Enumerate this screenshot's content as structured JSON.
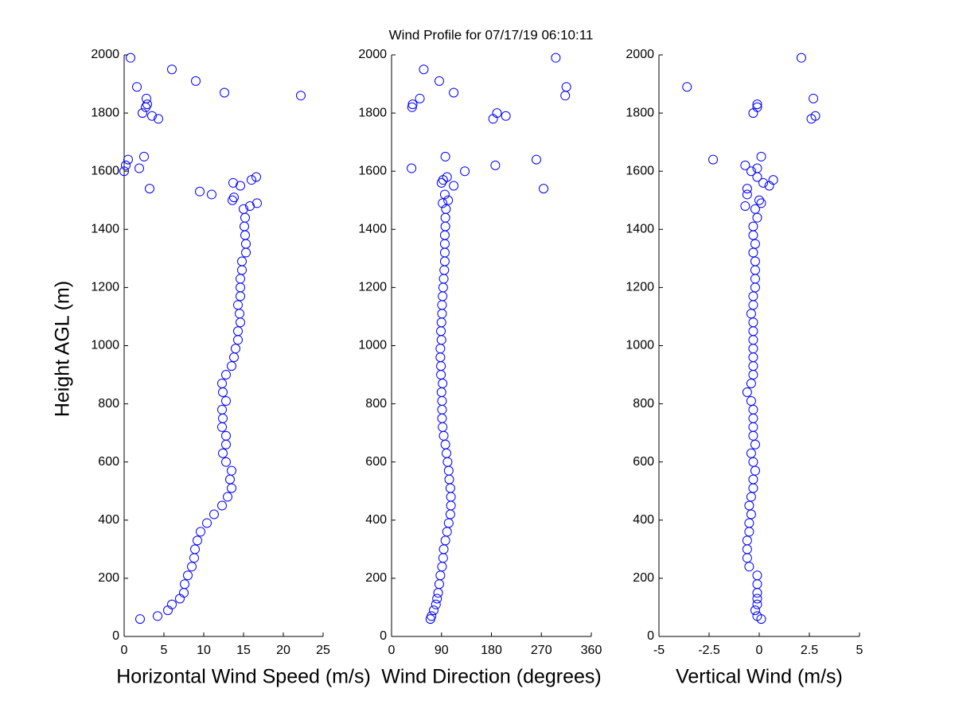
{
  "title": "Wind Profile for  07/17/19 06:10:11",
  "chart_data": [
    {
      "type": "scatter",
      "xlabel": "Horizontal Wind Speed (m/s)",
      "ylabel": "Height AGL (m)",
      "color": "#0000ff",
      "xlim": [
        0,
        25
      ],
      "xticks": [
        0,
        5,
        10,
        15,
        20,
        25
      ],
      "ylim": [
        0,
        2000
      ],
      "yticks": [
        0,
        200,
        400,
        600,
        800,
        1000,
        1200,
        1400,
        1600,
        1800,
        2000
      ],
      "x": [
        2,
        4.2,
        5.5,
        6,
        7,
        7.5,
        7.6,
        8,
        8.5,
        8.8,
        8.9,
        9.2,
        9.6,
        10.4,
        11.3,
        12.3,
        13,
        13.5,
        13.3,
        13.5,
        12.8,
        12.4,
        12.8,
        12.8,
        12.3,
        12.4,
        12.3,
        12.8,
        12.4,
        12.3,
        12.8,
        13.5,
        13.8,
        14,
        14.3,
        14.3,
        14.6,
        14.5,
        14.3,
        14.6,
        14.6,
        14.6,
        14.8,
        14.8,
        15.3,
        15.3,
        15.2,
        15.1,
        15.2,
        15,
        15.8,
        16.7,
        13.6,
        13.8,
        11,
        9.5,
        3.2,
        14.6,
        13.7,
        16,
        16.6,
        0,
        1.9,
        0.2,
        0.5,
        2.5,
        4.3,
        2.3,
        3.5,
        2.7,
        2.9,
        2.8,
        22.2,
        12.6,
        1.6,
        9,
        6,
        0.8
      ],
      "values": [
        60,
        70,
        90,
        110,
        130,
        150,
        180,
        210,
        240,
        270,
        300,
        330,
        360,
        390,
        420,
        450,
        480,
        510,
        540,
        570,
        600,
        630,
        660,
        690,
        720,
        750,
        780,
        810,
        840,
        870,
        900,
        930,
        960,
        990,
        1020,
        1050,
        1080,
        1110,
        1140,
        1170,
        1200,
        1230,
        1260,
        1290,
        1320,
        1350,
        1380,
        1410,
        1440,
        1470,
        1480,
        1490,
        1500,
        1510,
        1520,
        1530,
        1540,
        1550,
        1560,
        1570,
        1580,
        1600,
        1610,
        1620,
        1640,
        1650,
        1780,
        1800,
        1790,
        1820,
        1830,
        1850,
        1860,
        1870,
        1890,
        1910,
        1950,
        1990
      ]
    },
    {
      "type": "scatter",
      "xlabel": "Wind Direction (degrees)",
      "color": "#0000ff",
      "xlim": [
        0,
        360
      ],
      "xticks": [
        0,
        90,
        180,
        270,
        360
      ],
      "ylim": [
        0,
        2000
      ],
      "yticks": [
        0,
        200,
        400,
        600,
        800,
        1000,
        1200,
        1400,
        1600,
        1800,
        2000
      ],
      "x": [
        70,
        72,
        76,
        80,
        82,
        84,
        86,
        88,
        91,
        93,
        94,
        97,
        100,
        103,
        106,
        107,
        107,
        106,
        104,
        103,
        101,
        99,
        97,
        94,
        92,
        91,
        91,
        91,
        90,
        92,
        89,
        89,
        88,
        88,
        90,
        89,
        90,
        91,
        91,
        92,
        93,
        94,
        95,
        96,
        96,
        96,
        96,
        97,
        97,
        98,
        92,
        102,
        96,
        112,
        90,
        100,
        132,
        36,
        187,
        97,
        261,
        274,
        183,
        190,
        206,
        37,
        38,
        51,
        313,
        112,
        315,
        86,
        58,
        296,
        93
      ],
      "values": [
        60,
        70,
        90,
        110,
        130,
        150,
        180,
        210,
        240,
        270,
        300,
        330,
        360,
        390,
        420,
        450,
        480,
        510,
        540,
        570,
        600,
        630,
        660,
        690,
        720,
        750,
        780,
        810,
        840,
        870,
        900,
        930,
        960,
        990,
        1020,
        1050,
        1080,
        1110,
        1140,
        1170,
        1200,
        1230,
        1260,
        1290,
        1320,
        1350,
        1380,
        1410,
        1440,
        1470,
        1490,
        1500,
        1520,
        1550,
        1560,
        1580,
        1600,
        1610,
        1620,
        1650,
        1640,
        1540,
        1780,
        1800,
        1790,
        1820,
        1830,
        1850,
        1860,
        1870,
        1890,
        1910,
        1950,
        1990,
        1570
      ]
    },
    {
      "type": "scatter",
      "xlabel": "Vertical Wind (m/s)",
      "color": "#0000ff",
      "xlim": [
        -5,
        5
      ],
      "xticks": [
        -5,
        -2.5,
        0,
        2.5,
        5
      ],
      "ylim": [
        0,
        2000
      ],
      "yticks": [
        0,
        200,
        400,
        600,
        800,
        1000,
        1200,
        1400,
        1600,
        1800,
        2000
      ],
      "x": [
        0.1,
        -0.1,
        -0.2,
        -0.1,
        -0.1,
        -0.1,
        -0.1,
        -0.1,
        -0.5,
        -0.6,
        -0.6,
        -0.6,
        -0.5,
        -0.5,
        -0.4,
        -0.5,
        -0.4,
        -0.3,
        -0.3,
        -0.2,
        -0.3,
        -0.4,
        -0.2,
        -0.3,
        -0.3,
        -0.3,
        -0.3,
        -0.4,
        -0.6,
        -0.4,
        -0.3,
        -0.3,
        -0.3,
        -0.3,
        -0.3,
        -0.3,
        -0.3,
        -0.4,
        -0.3,
        -0.3,
        -0.2,
        -0.2,
        -0.2,
        -0.2,
        -0.3,
        -0.2,
        -0.3,
        -0.3,
        -0.1,
        -0.2,
        -0.7,
        0,
        0.1,
        -0.6,
        -0.6,
        0.2,
        0.5,
        0.7,
        -0.1,
        -0.4,
        -0.7,
        -2.3,
        0.1,
        -0.1,
        -0.3,
        -0.1,
        -0.1,
        2.6,
        2.7,
        2.8,
        -3.6,
        2.1
      ],
      "values": [
        60,
        70,
        90,
        110,
        130,
        150,
        180,
        210,
        240,
        270,
        300,
        330,
        360,
        390,
        420,
        450,
        480,
        510,
        540,
        570,
        600,
        630,
        660,
        690,
        720,
        750,
        780,
        810,
        840,
        870,
        900,
        930,
        960,
        990,
        1020,
        1050,
        1080,
        1110,
        1140,
        1170,
        1200,
        1230,
        1260,
        1290,
        1320,
        1350,
        1380,
        1410,
        1440,
        1470,
        1480,
        1500,
        1490,
        1520,
        1540,
        1560,
        1550,
        1570,
        1580,
        1600,
        1620,
        1640,
        1650,
        1610,
        1800,
        1820,
        1830,
        1780,
        1850,
        1790,
        1890,
        1990
      ]
    }
  ]
}
